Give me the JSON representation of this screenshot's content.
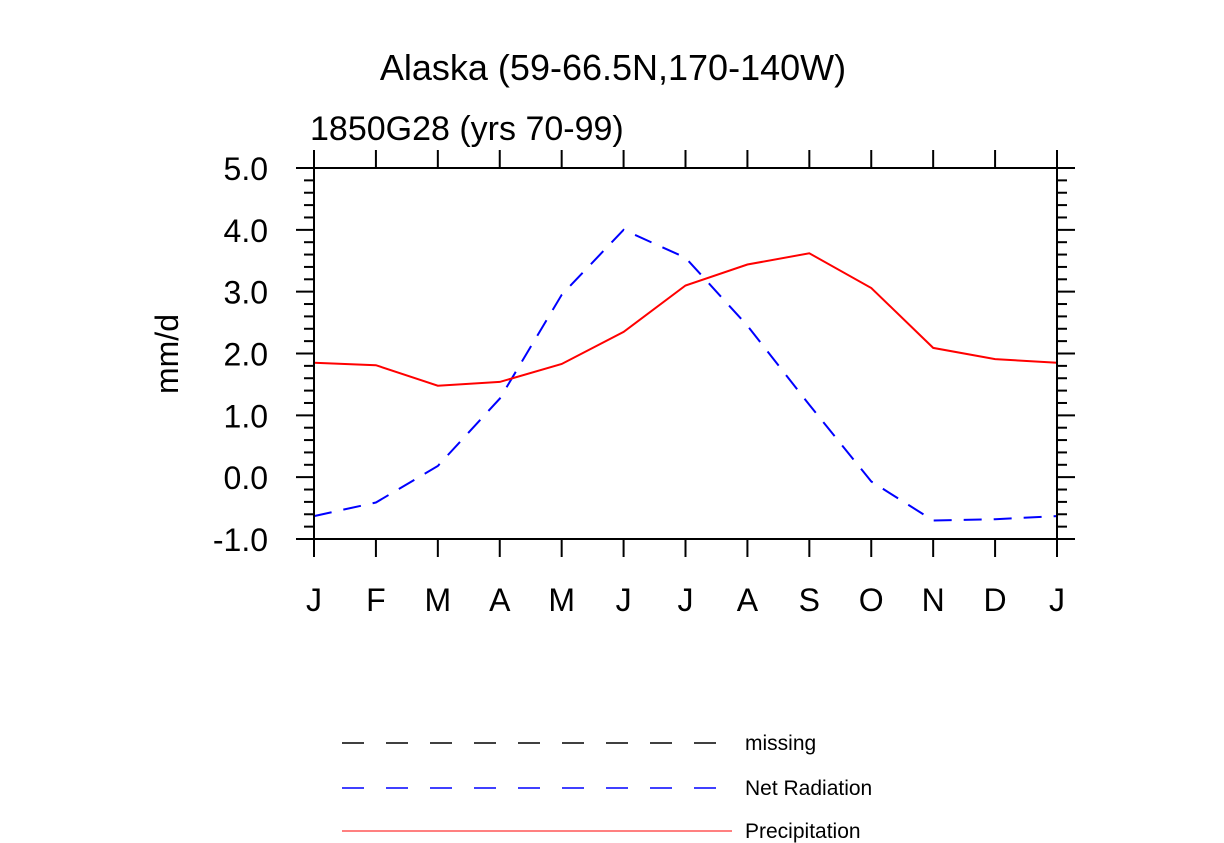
{
  "chart_data": {
    "type": "line",
    "title": "Alaska (59-66.5N,170-140W)",
    "subtitle": "1850G28 (yrs 70-99)",
    "ylabel": "mm/d",
    "xlabel": "",
    "categories": [
      "J",
      "F",
      "M",
      "A",
      "M",
      "J",
      "J",
      "A",
      "S",
      "O",
      "N",
      "D",
      "J"
    ],
    "ylim": [
      -1.0,
      5.0
    ],
    "yticks": [
      "-1.0",
      "0.0",
      "1.0",
      "2.0",
      "3.0",
      "4.0",
      "5.0"
    ],
    "series": [
      {
        "name": "Precipitation",
        "color": "#ff0000",
        "dash": "solid",
        "values": [
          1.85,
          1.81,
          1.48,
          1.54,
          1.83,
          2.35,
          3.1,
          3.44,
          3.62,
          3.06,
          2.09,
          1.91,
          1.85
        ]
      },
      {
        "name": "Net Radiation",
        "color": "#0000ff",
        "dash": "dashed",
        "values": [
          -0.63,
          -0.41,
          0.18,
          1.27,
          2.95,
          4.0,
          3.55,
          2.45,
          1.17,
          -0.07,
          -0.7,
          -0.68,
          -0.63
        ]
      }
    ],
    "legend": {
      "position": "bottom",
      "entries": [
        {
          "label": "missing",
          "color": "#000000",
          "dash": "dashed"
        },
        {
          "label": "Net Radiation",
          "color": "#0000ff",
          "dash": "dashed"
        },
        {
          "label": "Precipitation",
          "color": "#ff0000",
          "dash": "solid"
        }
      ]
    }
  }
}
